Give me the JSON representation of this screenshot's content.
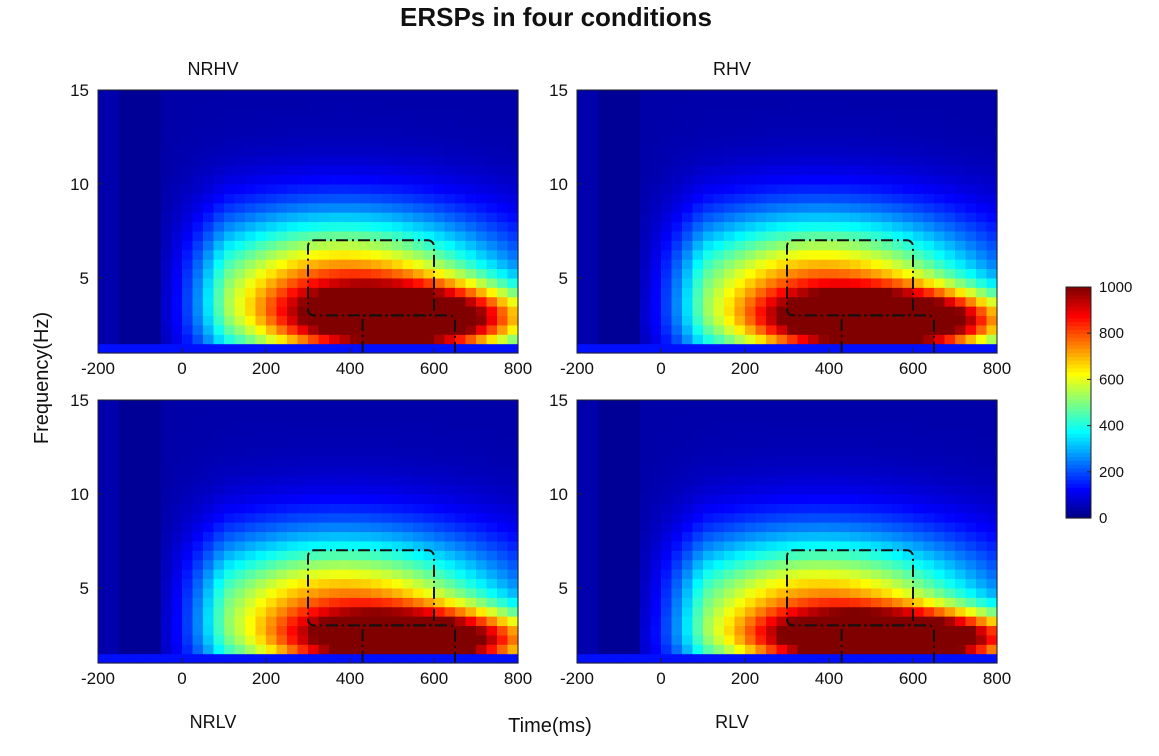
{
  "chart_data": {
    "type": "heatmap",
    "title": "ERSPs in four conditions",
    "xlabel": "Time(ms)",
    "ylabel": "Frequency(Hz)",
    "xlim": [
      -200,
      800
    ],
    "ylim": [
      1,
      15
    ],
    "xticks": [
      "-200",
      "0",
      "200",
      "400",
      "600",
      "800"
    ],
    "yticks": [
      "5",
      "10",
      "15"
    ],
    "colorbar": {
      "range": [
        0,
        1000
      ],
      "ticks": [
        "0",
        "200",
        "400",
        "600",
        "800",
        "1000"
      ],
      "colormap": "jet"
    },
    "panels": [
      {
        "name": "NRHV",
        "peak": {
          "time": 560,
          "freq": 2.8,
          "value": 850
        },
        "spread": {
          "time": 200,
          "freq": 1.2
        },
        "wide_component": {
          "time": 380,
          "freq": 4.5,
          "value": 520,
          "time_spread": 260,
          "freq_spread": 2.6
        },
        "roi": {
          "time": [
            300,
            600
          ],
          "freq": [
            3,
            7
          ]
        },
        "roi2": {
          "time": [
            430,
            650
          ],
          "freq": [
            1,
            3
          ]
        }
      },
      {
        "name": "RHV",
        "peak": {
          "time": 560,
          "freq": 2.7,
          "value": 940
        },
        "spread": {
          "time": 200,
          "freq": 1.1
        },
        "wide_component": {
          "time": 380,
          "freq": 4.5,
          "value": 500,
          "time_spread": 260,
          "freq_spread": 2.6
        },
        "roi": {
          "time": [
            300,
            600
          ],
          "freq": [
            3,
            7
          ]
        },
        "roi2": {
          "time": [
            430,
            650
          ],
          "freq": [
            1,
            3
          ]
        }
      },
      {
        "name": "NRLV",
        "peak": {
          "time": 580,
          "freq": 2.2,
          "value": 840
        },
        "spread": {
          "time": 210,
          "freq": 1.1
        },
        "wide_component": {
          "time": 380,
          "freq": 4.0,
          "value": 470,
          "time_spread": 270,
          "freq_spread": 2.5
        },
        "roi": {
          "time": [
            300,
            600
          ],
          "freq": [
            3,
            7
          ]
        },
        "roi2": {
          "time": [
            430,
            650
          ],
          "freq": [
            1,
            3
          ]
        }
      },
      {
        "name": "RLV",
        "peak": {
          "time": 580,
          "freq": 2.3,
          "value": 970
        },
        "spread": {
          "time": 220,
          "freq": 1.0
        },
        "wide_component": {
          "time": 380,
          "freq": 4.0,
          "value": 460,
          "time_spread": 270,
          "freq_spread": 2.5
        },
        "roi": {
          "time": [
            300,
            600
          ],
          "freq": [
            3,
            7
          ]
        },
        "roi2": {
          "time": [
            430,
            650
          ],
          "freq": [
            1,
            3
          ]
        }
      }
    ]
  }
}
